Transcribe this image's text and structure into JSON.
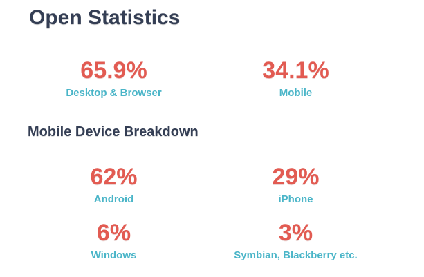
{
  "page": {
    "title": "Open Statistics",
    "section_title": "Mobile Device Breakdown"
  },
  "colors": {
    "heading": "#343e54",
    "stat_value": "#e25b52",
    "stat_label": "#4ab5c8",
    "background": "#ffffff"
  },
  "stats": {
    "overall": [
      {
        "value": "65.9%",
        "label": "Desktop & Browser"
      },
      {
        "value": "34.1%",
        "label": "Mobile"
      }
    ],
    "mobile_breakdown": [
      {
        "value": "62%",
        "label": "Android"
      },
      {
        "value": "29%",
        "label": "iPhone"
      },
      {
        "value": "6%",
        "label": "Windows"
      },
      {
        "value": "3%",
        "label": "Symbian, Blackberry etc."
      }
    ]
  },
  "chart_data": [
    {
      "type": "table",
      "title": "Open Statistics",
      "categories": [
        "Desktop & Browser",
        "Mobile"
      ],
      "values": [
        65.9,
        34.1
      ],
      "unit": "%",
      "value_color": "#e25b52",
      "label_color": "#4ab5c8"
    },
    {
      "type": "table",
      "title": "Mobile Device Breakdown",
      "categories": [
        "Android",
        "iPhone",
        "Windows",
        "Symbian, Blackberry etc."
      ],
      "values": [
        62,
        29,
        6,
        3
      ],
      "unit": "%",
      "value_color": "#e25b52",
      "label_color": "#4ab5c8"
    }
  ]
}
